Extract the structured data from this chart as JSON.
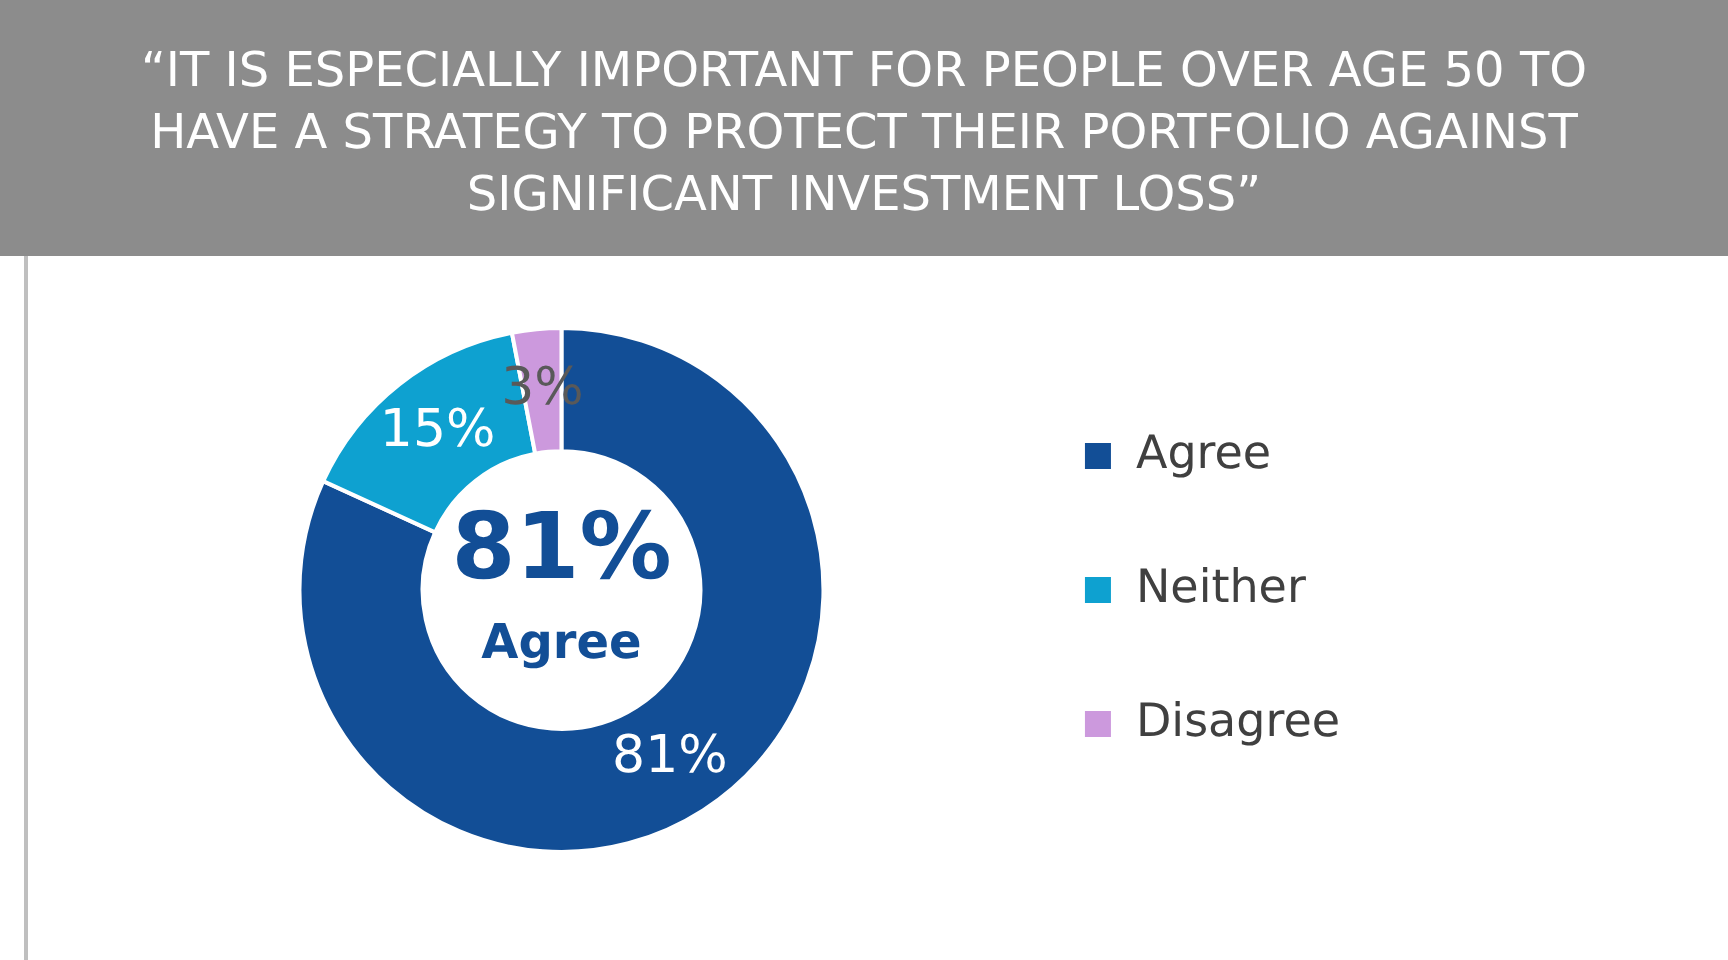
{
  "chart_data": {
    "type": "donut",
    "title": "“IT IS ESPECIALLY IMPORTANT FOR PEOPLE OVER AGE 50 TO HAVE A STRATEGY TO PROTECT THEIR PORTFOLIO AGAINST SIGNIFICANT INVESTMENT LOSS”",
    "categories": [
      "Agree",
      "Neither",
      "Disagree"
    ],
    "values": [
      81,
      15,
      3
    ],
    "colors": [
      "#124e96",
      "#0ea1d0",
      "#cc99dd"
    ],
    "value_labels": [
      "81%",
      "15%",
      "3%"
    ],
    "annotations": [
      "81%",
      "Agree"
    ],
    "legend": "right"
  }
}
